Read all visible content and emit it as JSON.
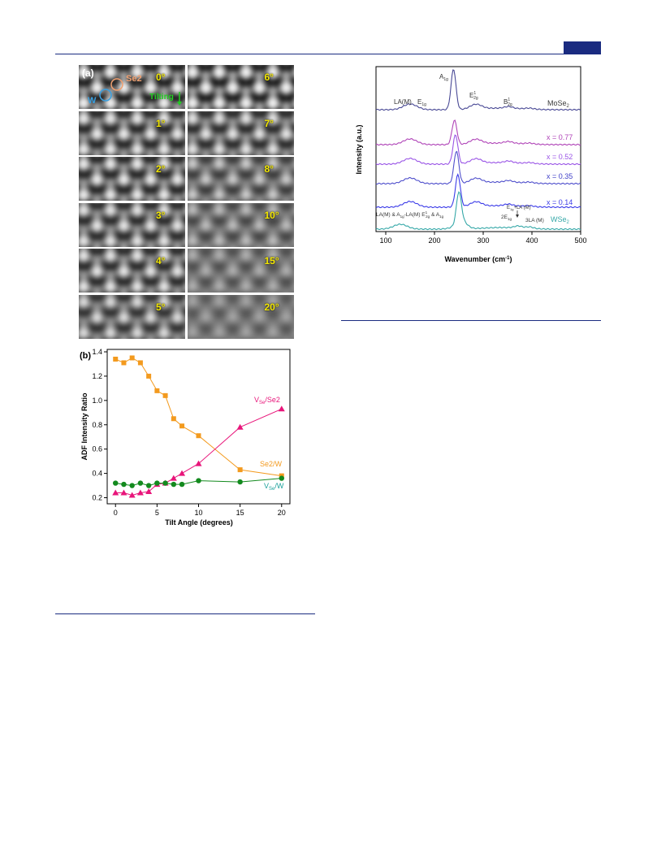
{
  "figure_a": {
    "label": "(a)",
    "annotations": {
      "se2": "Se2",
      "w": "W",
      "tilting": "Tilting"
    },
    "colors": {
      "se2": "#f0a070",
      "w": "#3aa0e0",
      "tilting": "#22cc22",
      "angle_label": "#f2e600"
    },
    "panels": [
      {
        "angle": "0°"
      },
      {
        "angle": "6°"
      },
      {
        "angle": "1°"
      },
      {
        "angle": "7°"
      },
      {
        "angle": "2°"
      },
      {
        "angle": "8°"
      },
      {
        "angle": "3°"
      },
      {
        "angle": "10°"
      },
      {
        "angle": "4°"
      },
      {
        "angle": "15°"
      },
      {
        "angle": "5°"
      },
      {
        "angle": "20°"
      }
    ]
  },
  "chart_data": [
    {
      "panel": "(b)",
      "type": "line",
      "xlabel": "Tilt Angle (degrees)",
      "ylabel": "ADF Intensity Ratio",
      "xlim": [
        -1,
        21
      ],
      "ylim": [
        0.15,
        1.42
      ],
      "xticks": [
        0,
        5,
        10,
        15,
        20
      ],
      "yticks": [
        0.2,
        0.4,
        0.6,
        0.8,
        1.0,
        1.2,
        1.4
      ],
      "ytick_labels": [
        "0.2",
        "0.4",
        "0.6",
        "0.8",
        "1.0",
        "1.2",
        "1.4"
      ],
      "x": [
        0,
        1,
        2,
        3,
        4,
        5,
        6,
        7,
        8,
        10,
        15,
        20
      ],
      "series": [
        {
          "name": "Se2/W",
          "color": "#f39a1e",
          "marker": "square",
          "values": [
            1.34,
            1.31,
            1.35,
            1.31,
            1.2,
            1.08,
            1.04,
            0.85,
            0.79,
            0.71,
            0.43,
            0.38
          ]
        },
        {
          "name_main": "V",
          "name_sub": "Se",
          "name_rest": "/Se2",
          "color": "#e8157a",
          "marker": "triangle",
          "values": [
            0.24,
            0.24,
            0.22,
            0.24,
            0.25,
            0.31,
            0.32,
            0.36,
            0.4,
            0.48,
            0.78,
            0.93
          ]
        },
        {
          "name_main": "V",
          "name_sub": "Se",
          "name_rest": "/W",
          "color": "#138a1e",
          "marker": "circle",
          "values": [
            0.32,
            0.31,
            0.3,
            0.32,
            0.3,
            0.32,
            0.32,
            0.31,
            0.31,
            0.34,
            0.33,
            0.36
          ]
        }
      ],
      "legend_label_colors": {
        "se2w": "#f39a1e",
        "vse_se2": "#e8157a",
        "vse_w": "#1aa09a"
      }
    },
    {
      "panel": "(c)",
      "type": "line",
      "xlabel_main": "Wavenumber (cm",
      "xlabel_sup": "-1",
      "xlabel_end": ")",
      "ylabel": "Intensity (a.u.)",
      "xlim": [
        80,
        500
      ],
      "xticks": [
        100,
        200,
        300,
        400,
        500
      ],
      "spectra": [
        {
          "name_main": "MoSe",
          "name_sub": "2",
          "color": "#4a4a96"
        },
        {
          "name": "x = 0.77",
          "color": "#b045b8"
        },
        {
          "name": "x = 0.52",
          "color": "#9a55e6"
        },
        {
          "name": "x = 0.35",
          "color": "#5050cc"
        },
        {
          "name": "x = 0.14",
          "color": "#3c3ce8"
        },
        {
          "name_main": "WSe",
          "name_sub": "2",
          "color": "#36a8a8"
        }
      ],
      "peak_labels": {
        "a1g_main": "A",
        "a1g_sub": "1g",
        "la_m": "LA(M)",
        "e1g_main": "E",
        "e1g_sub": "1g",
        "e2g_main": "E",
        "e2g_sup": "1",
        "e2g_sub": "2g",
        "b2g_main": "B",
        "b2g_sup": "1",
        "b2g_sub": "2g",
        "wse_left_1": "LA(M) & A",
        "wse_left_1_sub": "1g",
        "wse_left_2": "-LA(M) E",
        "wse_left_2_sup": "1",
        "wse_left_2_sub": "2g",
        "wse_left_3": " & A",
        "wse_left_3_sub": "1g",
        "e1g_la_main": "E",
        "e1g_la_sub": "1g",
        "e1g_la_rest": "+LA (M)",
        "two_e": "2E",
        "two_e_sub": "1g",
        "three_la": "3LA (M)"
      }
    }
  ]
}
